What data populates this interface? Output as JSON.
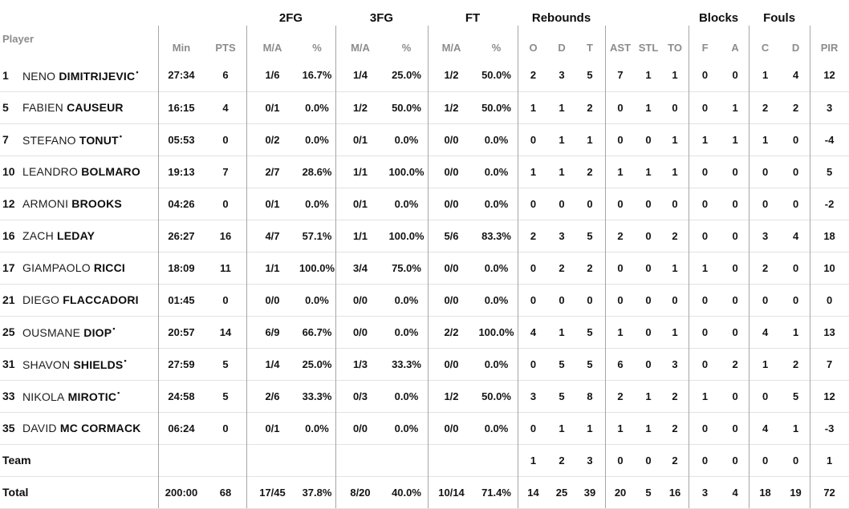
{
  "header": {
    "player_label": "Player",
    "groups": [
      "2FG",
      "3FG",
      "FT",
      "Rebounds",
      "Blocks",
      "Fouls"
    ],
    "cols": {
      "min": "Min",
      "pts": "PTS",
      "ma": "M/A",
      "pct": "%",
      "o": "O",
      "d": "D",
      "t": "T",
      "ast": "AST",
      "stl": "STL",
      "to": "TO",
      "f": "F",
      "a": "A",
      "c": "C",
      "d2": "D",
      "pir": "PIR"
    }
  },
  "starter_marker": "•",
  "colors": {
    "text": "#141414",
    "muted_header": "#8c8c8c",
    "column_divider": "#a6a6a6",
    "row_line": "#e2e2e2",
    "background": "#ffffff"
  },
  "players": [
    {
      "num": "1",
      "first": "NENO",
      "last": "DIMITRIJEVIC",
      "starter": true,
      "min": "27:34",
      "pts": "6",
      "fg2_ma": "1/6",
      "fg2_pct": "16.7%",
      "fg3_ma": "1/4",
      "fg3_pct": "25.0%",
      "ft_ma": "1/2",
      "ft_pct": "50.0%",
      "reb_o": "2",
      "reb_d": "3",
      "reb_t": "5",
      "ast": "7",
      "stl": "1",
      "to": "1",
      "blk_f": "0",
      "blk_a": "0",
      "foul_c": "1",
      "foul_d": "4",
      "pir": "12"
    },
    {
      "num": "5",
      "first": "FABIEN",
      "last": "CAUSEUR",
      "starter": false,
      "min": "16:15",
      "pts": "4",
      "fg2_ma": "0/1",
      "fg2_pct": "0.0%",
      "fg3_ma": "1/2",
      "fg3_pct": "50.0%",
      "ft_ma": "1/2",
      "ft_pct": "50.0%",
      "reb_o": "1",
      "reb_d": "1",
      "reb_t": "2",
      "ast": "0",
      "stl": "1",
      "to": "0",
      "blk_f": "0",
      "blk_a": "1",
      "foul_c": "2",
      "foul_d": "2",
      "pir": "3"
    },
    {
      "num": "7",
      "first": "STEFANO",
      "last": "TONUT",
      "starter": true,
      "min": "05:53",
      "pts": "0",
      "fg2_ma": "0/2",
      "fg2_pct": "0.0%",
      "fg3_ma": "0/1",
      "fg3_pct": "0.0%",
      "ft_ma": "0/0",
      "ft_pct": "0.0%",
      "reb_o": "0",
      "reb_d": "1",
      "reb_t": "1",
      "ast": "0",
      "stl": "0",
      "to": "1",
      "blk_f": "1",
      "blk_a": "1",
      "foul_c": "1",
      "foul_d": "0",
      "pir": "-4"
    },
    {
      "num": "10",
      "first": "LEANDRO",
      "last": "BOLMARO",
      "starter": false,
      "min": "19:13",
      "pts": "7",
      "fg2_ma": "2/7",
      "fg2_pct": "28.6%",
      "fg3_ma": "1/1",
      "fg3_pct": "100.0%",
      "ft_ma": "0/0",
      "ft_pct": "0.0%",
      "reb_o": "1",
      "reb_d": "1",
      "reb_t": "2",
      "ast": "1",
      "stl": "1",
      "to": "1",
      "blk_f": "0",
      "blk_a": "0",
      "foul_c": "0",
      "foul_d": "0",
      "pir": "5"
    },
    {
      "num": "12",
      "first": "ARMONI",
      "last": "BROOKS",
      "starter": false,
      "min": "04:26",
      "pts": "0",
      "fg2_ma": "0/1",
      "fg2_pct": "0.0%",
      "fg3_ma": "0/1",
      "fg3_pct": "0.0%",
      "ft_ma": "0/0",
      "ft_pct": "0.0%",
      "reb_o": "0",
      "reb_d": "0",
      "reb_t": "0",
      "ast": "0",
      "stl": "0",
      "to": "0",
      "blk_f": "0",
      "blk_a": "0",
      "foul_c": "0",
      "foul_d": "0",
      "pir": "-2"
    },
    {
      "num": "16",
      "first": "ZACH",
      "last": "LEDAY",
      "starter": false,
      "min": "26:27",
      "pts": "16",
      "fg2_ma": "4/7",
      "fg2_pct": "57.1%",
      "fg3_ma": "1/1",
      "fg3_pct": "100.0%",
      "ft_ma": "5/6",
      "ft_pct": "83.3%",
      "reb_o": "2",
      "reb_d": "3",
      "reb_t": "5",
      "ast": "2",
      "stl": "0",
      "to": "2",
      "blk_f": "0",
      "blk_a": "0",
      "foul_c": "3",
      "foul_d": "4",
      "pir": "18"
    },
    {
      "num": "17",
      "first": "GIAMPAOLO",
      "last": "RICCI",
      "starter": false,
      "min": "18:09",
      "pts": "11",
      "fg2_ma": "1/1",
      "fg2_pct": "100.0%",
      "fg3_ma": "3/4",
      "fg3_pct": "75.0%",
      "ft_ma": "0/0",
      "ft_pct": "0.0%",
      "reb_o": "0",
      "reb_d": "2",
      "reb_t": "2",
      "ast": "0",
      "stl": "0",
      "to": "1",
      "blk_f": "1",
      "blk_a": "0",
      "foul_c": "2",
      "foul_d": "0",
      "pir": "10"
    },
    {
      "num": "21",
      "first": "DIEGO",
      "last": "FLACCADORI",
      "starter": false,
      "min": "01:45",
      "pts": "0",
      "fg2_ma": "0/0",
      "fg2_pct": "0.0%",
      "fg3_ma": "0/0",
      "fg3_pct": "0.0%",
      "ft_ma": "0/0",
      "ft_pct": "0.0%",
      "reb_o": "0",
      "reb_d": "0",
      "reb_t": "0",
      "ast": "0",
      "stl": "0",
      "to": "0",
      "blk_f": "0",
      "blk_a": "0",
      "foul_c": "0",
      "foul_d": "0",
      "pir": "0"
    },
    {
      "num": "25",
      "first": "OUSMANE",
      "last": "DIOP",
      "starter": true,
      "min": "20:57",
      "pts": "14",
      "fg2_ma": "6/9",
      "fg2_pct": "66.7%",
      "fg3_ma": "0/0",
      "fg3_pct": "0.0%",
      "ft_ma": "2/2",
      "ft_pct": "100.0%",
      "reb_o": "4",
      "reb_d": "1",
      "reb_t": "5",
      "ast": "1",
      "stl": "0",
      "to": "1",
      "blk_f": "0",
      "blk_a": "0",
      "foul_c": "4",
      "foul_d": "1",
      "pir": "13"
    },
    {
      "num": "31",
      "first": "SHAVON",
      "last": "SHIELDS",
      "starter": true,
      "min": "27:59",
      "pts": "5",
      "fg2_ma": "1/4",
      "fg2_pct": "25.0%",
      "fg3_ma": "1/3",
      "fg3_pct": "33.3%",
      "ft_ma": "0/0",
      "ft_pct": "0.0%",
      "reb_o": "0",
      "reb_d": "5",
      "reb_t": "5",
      "ast": "6",
      "stl": "0",
      "to": "3",
      "blk_f": "0",
      "blk_a": "2",
      "foul_c": "1",
      "foul_d": "2",
      "pir": "7"
    },
    {
      "num": "33",
      "first": "NIKOLA",
      "last": "MIROTIC",
      "starter": true,
      "min": "24:58",
      "pts": "5",
      "fg2_ma": "2/6",
      "fg2_pct": "33.3%",
      "fg3_ma": "0/3",
      "fg3_pct": "0.0%",
      "ft_ma": "1/2",
      "ft_pct": "50.0%",
      "reb_o": "3",
      "reb_d": "5",
      "reb_t": "8",
      "ast": "2",
      "stl": "1",
      "to": "2",
      "blk_f": "1",
      "blk_a": "0",
      "foul_c": "0",
      "foul_d": "5",
      "pir": "12"
    },
    {
      "num": "35",
      "first": "DAVID",
      "last": "MC CORMACK",
      "starter": false,
      "min": "06:24",
      "pts": "0",
      "fg2_ma": "0/1",
      "fg2_pct": "0.0%",
      "fg3_ma": "0/0",
      "fg3_pct": "0.0%",
      "ft_ma": "0/0",
      "ft_pct": "0.0%",
      "reb_o": "0",
      "reb_d": "1",
      "reb_t": "1",
      "ast": "1",
      "stl": "1",
      "to": "2",
      "blk_f": "0",
      "blk_a": "0",
      "foul_c": "4",
      "foul_d": "1",
      "pir": "-3"
    }
  ],
  "team_row": {
    "label": "Team",
    "min": "",
    "pts": "",
    "fg2_ma": "",
    "fg2_pct": "",
    "fg3_ma": "",
    "fg3_pct": "",
    "ft_ma": "",
    "ft_pct": "",
    "reb_o": "1",
    "reb_d": "2",
    "reb_t": "3",
    "ast": "0",
    "stl": "0",
    "to": "2",
    "blk_f": "0",
    "blk_a": "0",
    "foul_c": "0",
    "foul_d": "0",
    "pir": "1"
  },
  "total_row": {
    "label": "Total",
    "min": "200:00",
    "pts": "68",
    "fg2_ma": "17/45",
    "fg2_pct": "37.8%",
    "fg3_ma": "8/20",
    "fg3_pct": "40.0%",
    "ft_ma": "10/14",
    "ft_pct": "71.4%",
    "reb_o": "14",
    "reb_d": "25",
    "reb_t": "39",
    "ast": "20",
    "stl": "5",
    "to": "16",
    "blk_f": "3",
    "blk_a": "4",
    "foul_c": "18",
    "foul_d": "19",
    "pir": "72"
  }
}
